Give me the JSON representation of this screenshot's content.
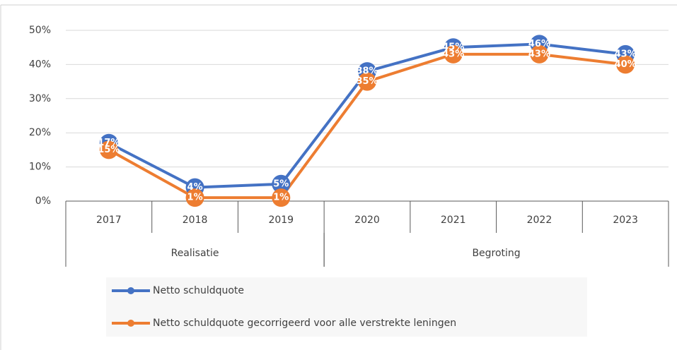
{
  "chart_data": {
    "type": "line",
    "categories": [
      "2017",
      "2018",
      "2019",
      "2020",
      "2021",
      "2022",
      "2023"
    ],
    "groups": [
      {
        "name": "Realisatie",
        "categories": [
          "2017",
          "2018",
          "2019"
        ]
      },
      {
        "name": "Begroting",
        "categories": [
          "2020",
          "2021",
          "2022",
          "2023"
        ]
      }
    ],
    "series": [
      {
        "name": "Netto schuldquote",
        "color": "#4472c4",
        "values": [
          17,
          4,
          5,
          38,
          45,
          46,
          43
        ],
        "value_labels": [
          "17%",
          "4%",
          "5%",
          "38%",
          "45%",
          "46%",
          "43%"
        ]
      },
      {
        "name": "Netto schuldquote gecorrigeerd voor alle verstrekte leningen",
        "color": "#ed7d31",
        "values": [
          15,
          1,
          1,
          35,
          43,
          43,
          40
        ],
        "value_labels": [
          "15%",
          "1%",
          "1%",
          "35%",
          "43%",
          "43%",
          "40%"
        ]
      }
    ],
    "ylim": [
      0,
      50
    ],
    "yticks": [
      {
        "value": 0,
        "label": "0%"
      },
      {
        "value": 10,
        "label": "10%"
      },
      {
        "value": 20,
        "label": "20%"
      },
      {
        "value": 30,
        "label": "30%"
      },
      {
        "value": 40,
        "label": "40%"
      },
      {
        "value": 50,
        "label": "50%"
      }
    ],
    "grid": true,
    "legend": "bottom"
  }
}
